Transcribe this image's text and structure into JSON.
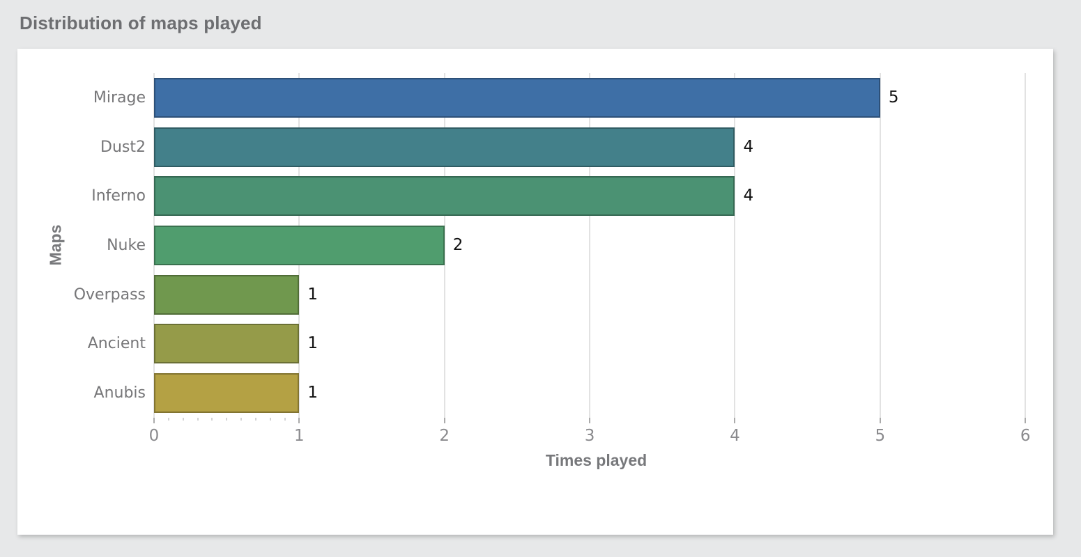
{
  "page": {
    "title": "Distribution of maps played"
  },
  "colors": {
    "page_background": "#e7e8e9",
    "card_background": "#ffffff",
    "title_text": "#6d6e71",
    "axis_label_text": "#77787b",
    "category_text": "#767678",
    "tick_text": "#8a8a8d",
    "value_text": "#111111",
    "gridline": "#e2e2e2",
    "tick_mark": "#ababab"
  },
  "chart_data": {
    "type": "bar",
    "orientation": "horizontal",
    "title": "Distribution of maps played",
    "categories": [
      "Mirage",
      "Dust2",
      "Inferno",
      "Nuke",
      "Overpass",
      "Ancient",
      "Anubis"
    ],
    "values": [
      5,
      4,
      4,
      2,
      1,
      1,
      1
    ],
    "value_labels": [
      "5",
      "4",
      "4",
      "2",
      "1",
      "1",
      "1"
    ],
    "bar_colors": [
      "#3e6fa6",
      "#43808a",
      "#4b9273",
      "#509d6e",
      "#70984e",
      "#959b49",
      "#b4a144"
    ],
    "xlabel": "Times played",
    "ylabel": "Maps",
    "xlim": [
      0,
      6.09
    ],
    "xticks": [
      0,
      1,
      2,
      3,
      4,
      5,
      6
    ],
    "x_minor_ticks": [
      0.1,
      0.2,
      0.3,
      0.4,
      0.5,
      0.6,
      0.7,
      0.8,
      0.9
    ],
    "grid": true,
    "legend": null
  }
}
